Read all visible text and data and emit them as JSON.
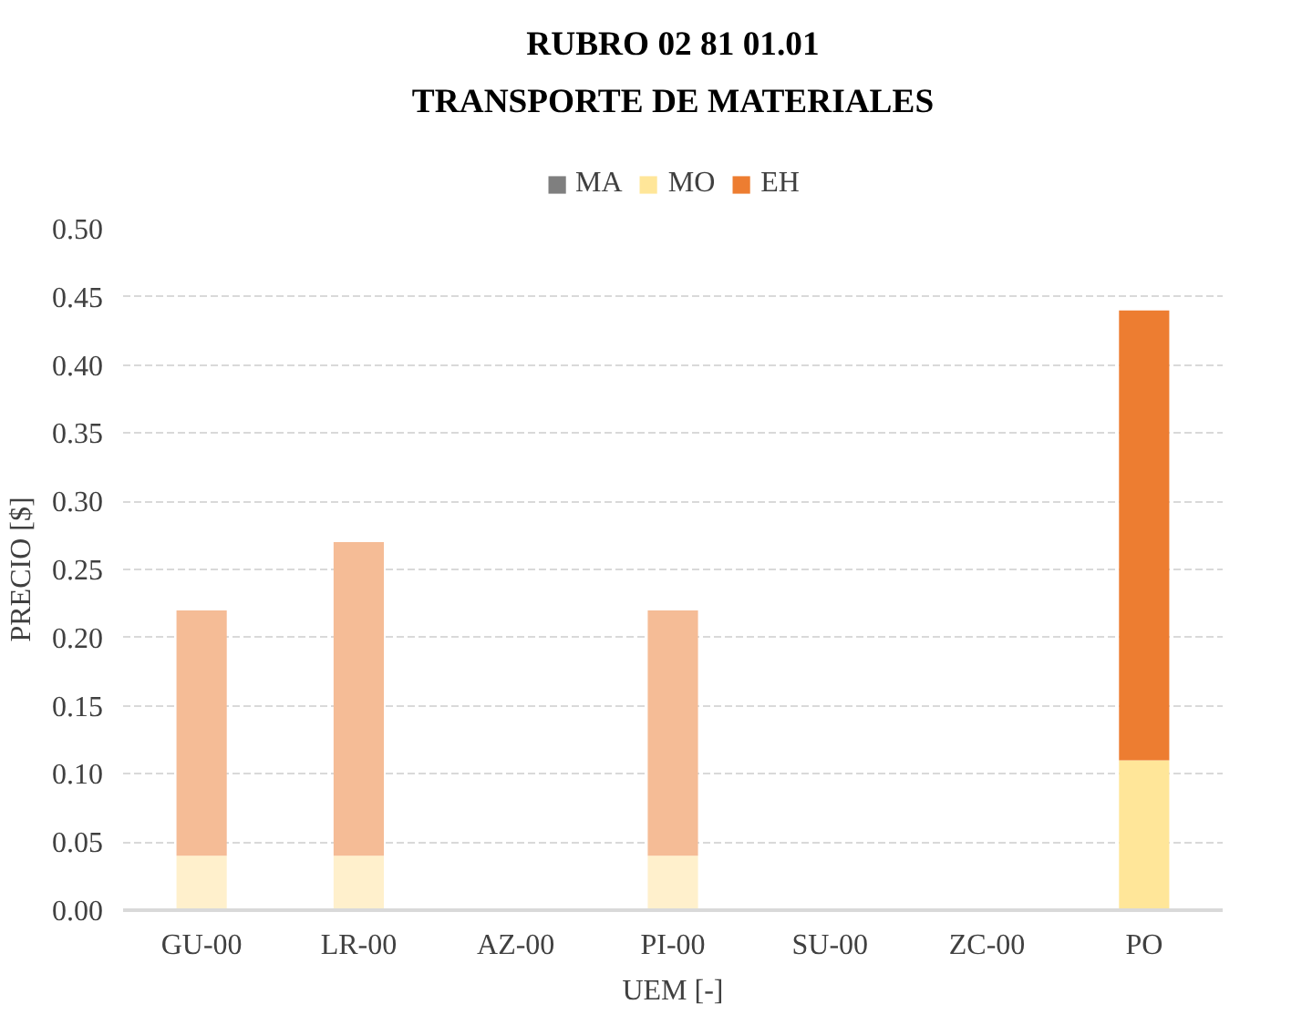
{
  "chart_data": {
    "type": "bar",
    "stacked": true,
    "title": "RUBRO 02 81 01.01\nTRANSPORTE DE MATERIALES",
    "xlabel": "UEM [-]",
    "ylabel": "PRECIO [$]",
    "categories": [
      "GU-00",
      "LR-00",
      "AZ-00",
      "PI-00",
      "SU-00",
      "ZC-00",
      "PO"
    ],
    "series": [
      {
        "name": "MA",
        "color": "#7f7f7f",
        "values": [
          0,
          0,
          0,
          0,
          0,
          0,
          0
        ]
      },
      {
        "name": "MO",
        "color": "#ffe699",
        "colors": [
          "#fff0cc",
          "#fff0cc",
          "#fff0cc",
          "#fff0cc",
          "#fff0cc",
          "#fff0cc",
          "#ffe699"
        ],
        "values": [
          0.04,
          0.04,
          0,
          0.04,
          0,
          0,
          0.11
        ]
      },
      {
        "name": "EH",
        "color": "#ed7d31",
        "colors": [
          "#f5bc96",
          "#f5bc96",
          "#f5bc96",
          "#f5bc96",
          "#f5bc96",
          "#f5bc96",
          "#ed7d31"
        ],
        "values": [
          0.18,
          0.23,
          0,
          0.18,
          0,
          0,
          0.33
        ]
      }
    ],
    "ylim": [
      0,
      0.5
    ],
    "yticks": [
      {
        "value": 0,
        "label": "0.00"
      },
      {
        "value": 0.05,
        "label": "0.05"
      },
      {
        "value": 0.1,
        "label": "0.10"
      },
      {
        "value": 0.15,
        "label": "0.15"
      },
      {
        "value": 0.2,
        "label": "0.20"
      },
      {
        "value": 0.25,
        "label": "0.25"
      },
      {
        "value": 0.3,
        "label": "0.30"
      },
      {
        "value": 0.35,
        "label": "0.35"
      },
      {
        "value": 0.4,
        "label": "0.40"
      },
      {
        "value": 0.45,
        "label": "0.45"
      },
      {
        "value": 0.5,
        "label": "0.50"
      }
    ],
    "grid": "y",
    "legend": "top"
  }
}
